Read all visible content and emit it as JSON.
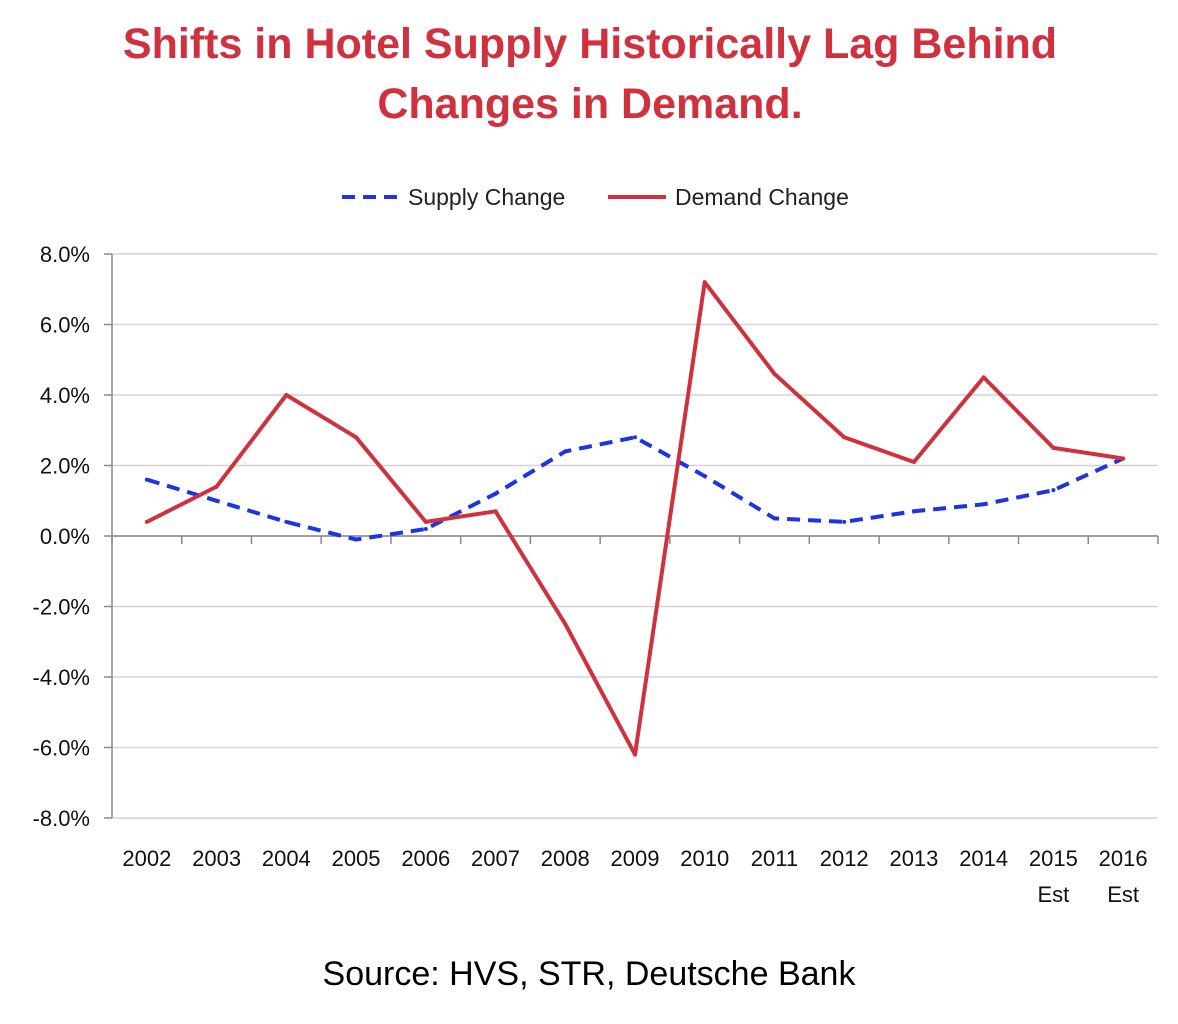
{
  "title_line1": "Shifts in Hotel Supply Historically Lag Behind",
  "title_line2": "Changes in Demand.",
  "source": "Source: HVS, STR, Deutsche Bank",
  "colors": {
    "title": "#d0313f",
    "supply": "#1e32e6",
    "demand": "#d0313f",
    "grid": "#d4d4d4"
  },
  "chart_data": {
    "type": "line",
    "categories": [
      "2002",
      "2003",
      "2004",
      "2005",
      "2006",
      "2007",
      "2008",
      "2009",
      "2010",
      "2011",
      "2012",
      "2013",
      "2014",
      "2015\nEst",
      "2016\nEst"
    ],
    "ylim": [
      -8.0,
      8.0
    ],
    "yticks": [
      "8.0%",
      "6.0%",
      "4.0%",
      "2.0%",
      "0.0%",
      "-2.0%",
      "-4.0%",
      "-6.0%",
      "-8.0%"
    ],
    "ytick_values": [
      8,
      6,
      4,
      2,
      0,
      -2,
      -4,
      -6,
      -8
    ],
    "grid": true,
    "legend": "top-center",
    "series": [
      {
        "name": "Supply Change",
        "style": "dashed",
        "values": [
          1.6,
          1.0,
          0.4,
          -0.1,
          0.2,
          1.2,
          2.4,
          2.8,
          1.7,
          0.5,
          0.4,
          0.7,
          0.9,
          1.3,
          2.2
        ]
      },
      {
        "name": "Demand Change",
        "style": "solid",
        "values": [
          0.4,
          1.4,
          4.0,
          2.8,
          0.4,
          0.7,
          -2.5,
          -6.2,
          7.2,
          4.6,
          2.8,
          2.1,
          4.5,
          2.5,
          2.2
        ]
      }
    ]
  }
}
